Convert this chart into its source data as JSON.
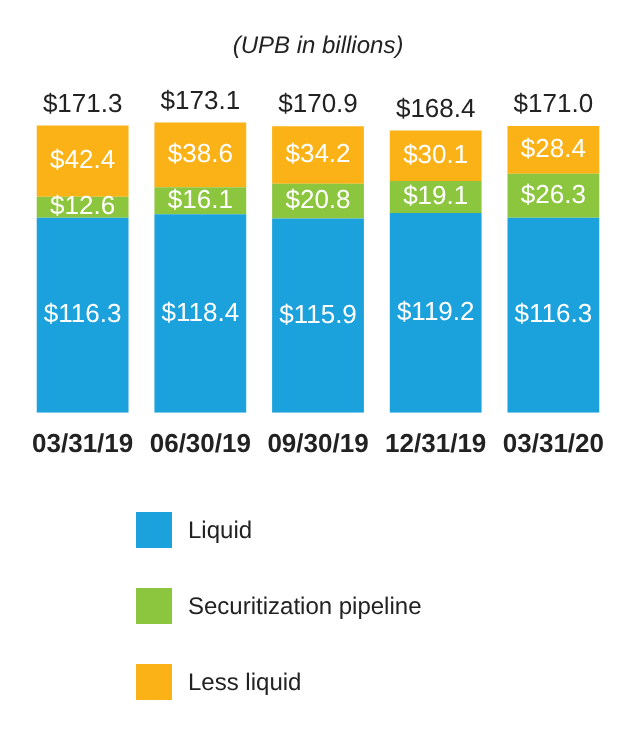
{
  "chart_data": {
    "type": "bar",
    "title": "(UPB in billions)",
    "categories": [
      "03/31/19",
      "06/30/19",
      "09/30/19",
      "12/31/19",
      "03/31/20"
    ],
    "stacked": true,
    "legend": "bottom",
    "grid": false,
    "series": [
      {
        "name": "Liquid",
        "color": "#1ba1dc",
        "values": [
          116.3,
          118.4,
          115.9,
          119.2,
          116.3
        ],
        "value_labels": [
          "$116.3",
          "$118.4",
          "$115.9",
          "$119.2",
          "$116.3"
        ]
      },
      {
        "name": "Securitization pipeline",
        "color": "#8cc63f",
        "values": [
          12.6,
          16.1,
          20.8,
          19.1,
          26.3
        ],
        "value_labels": [
          "$12.6",
          "$16.1",
          "$20.8",
          "$19.1",
          "$26.3"
        ]
      },
      {
        "name": "Less liquid",
        "color": "#fbb217",
        "values": [
          42.4,
          38.6,
          34.2,
          30.1,
          28.4
        ],
        "value_labels": [
          "$42.4",
          "$38.6",
          "$34.2",
          "$30.1",
          "$28.4"
        ]
      }
    ],
    "totals": [
      "$171.3",
      "$173.1",
      "$170.9",
      "$168.4",
      "$171.0"
    ]
  }
}
